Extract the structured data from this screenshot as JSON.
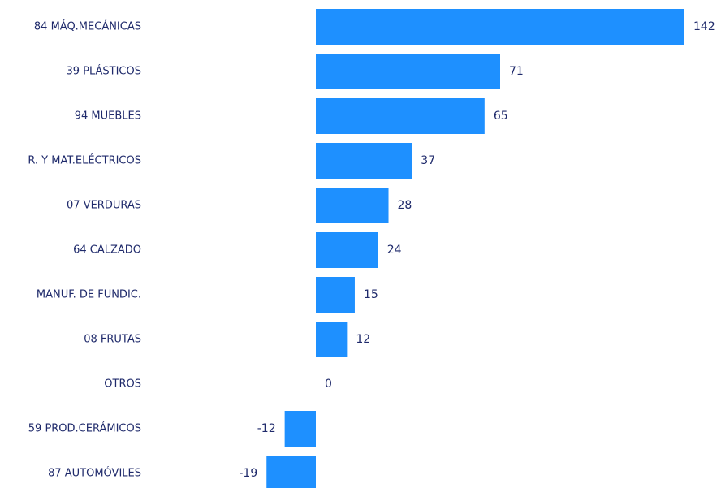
{
  "chart_data": {
    "type": "bar",
    "orientation": "horizontal",
    "categories": [
      "84 MÁQ.MECÁNICAS",
      "39 PLÁSTICOS",
      "94 MUEBLES",
      "R. Y MAT.ELÉCTRICOS",
      "07 VERDURAS",
      "64 CALZADO",
      "MANUF. DE FUNDIC.",
      "08 FRUTAS",
      "OTROS",
      "59 PROD.CERÁMICOS",
      "87 AUTOMÓVILES"
    ],
    "values": [
      142,
      71,
      65,
      37,
      28,
      24,
      15,
      12,
      0,
      -12,
      -19
    ],
    "value_labels": [
      "142",
      "71",
      "65",
      "37",
      "28",
      "24",
      "15",
      "12",
      "0",
      "-12",
      "-19"
    ],
    "title": "",
    "xlabel": "",
    "ylabel": "",
    "xlim": [
      -19,
      142
    ],
    "grid": false,
    "legend": "none",
    "bar_color": "#1e90ff",
    "label_color": "#1f2a6b"
  }
}
